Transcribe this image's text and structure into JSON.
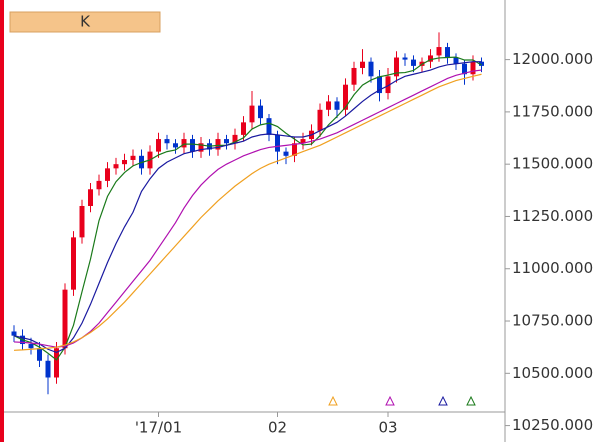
{
  "chart_data": {
    "type": "candlestick",
    "panel_label": "K",
    "categories": [
      null,
      null,
      null,
      null,
      null,
      null,
      null,
      null,
      null,
      null,
      null,
      null,
      null,
      null,
      null,
      null,
      null,
      "'17/01",
      null,
      null,
      null,
      null,
      null,
      null,
      null,
      null,
      null,
      null,
      null,
      null,
      null,
      "02",
      null,
      null,
      null,
      null,
      null,
      null,
      null,
      null,
      null,
      null,
      null,
      null,
      "03",
      null,
      null,
      null,
      null,
      null,
      null,
      null,
      null,
      null,
      null,
      null
    ],
    "open": [
      10700,
      10680,
      10640,
      10620,
      10560,
      10480,
      10620,
      10900,
      11150,
      11300,
      11380,
      11420,
      11480,
      11500,
      11520,
      11540,
      11480,
      11560,
      11620,
      11600,
      11580,
      11620,
      11560,
      11600,
      11570,
      11620,
      11600,
      11640,
      11700,
      11780,
      11720,
      11640,
      11560,
      11540,
      11600,
      11620,
      11660,
      11760,
      11800,
      11760,
      11880,
      11960,
      11990,
      11920,
      11840,
      11920,
      12010,
      12000,
      11970,
      11990,
      12020,
      12060,
      12010,
      11980,
      11930,
      11990
    ],
    "high": [
      10730,
      10710,
      10670,
      10650,
      10590,
      10650,
      10930,
      11180,
      11330,
      11410,
      11450,
      11510,
      11530,
      11550,
      11570,
      11570,
      11590,
      11650,
      11640,
      11620,
      11650,
      11640,
      11630,
      11620,
      11650,
      11640,
      11670,
      11730,
      11850,
      11810,
      11740,
      11660,
      11580,
      11630,
      11650,
      11690,
      11790,
      11830,
      11820,
      11910,
      11990,
      12050,
      12010,
      11950,
      11960,
      12040,
      12030,
      12020,
      12010,
      12050,
      12130,
      12080,
      12030,
      12000,
      12020,
      12010
    ],
    "low": [
      10650,
      10610,
      10590,
      10530,
      10400,
      10450,
      10590,
      10870,
      11120,
      11270,
      11350,
      11390,
      11450,
      11470,
      11490,
      11450,
      11450,
      11530,
      11570,
      11550,
      11550,
      11530,
      11530,
      11540,
      11540,
      11570,
      11570,
      11610,
      11670,
      11690,
      11610,
      11500,
      11500,
      11510,
      11570,
      11590,
      11630,
      11730,
      11720,
      11730,
      11850,
      11930,
      11890,
      11800,
      11810,
      11890,
      11970,
      11940,
      11940,
      11960,
      11990,
      11980,
      11950,
      11880,
      11900,
      11940
    ],
    "close": [
      10680,
      10640,
      10620,
      10560,
      10480,
      10620,
      10900,
      11150,
      11300,
      11380,
      11420,
      11480,
      11500,
      11520,
      11540,
      11480,
      11560,
      11620,
      11600,
      11580,
      11620,
      11560,
      11600,
      11570,
      11620,
      11600,
      11640,
      11700,
      11780,
      11720,
      11640,
      11560,
      11540,
      11600,
      11620,
      11660,
      11760,
      11800,
      11760,
      11880,
      11960,
      11990,
      11920,
      11840,
      11920,
      12010,
      12000,
      11970,
      11990,
      12020,
      12060,
      12010,
      11980,
      11930,
      11990,
      11970
    ],
    "up_color": "#e8001c",
    "down_color": "#0033cc",
    "series": [
      {
        "color": "#1a7a1a",
        "values": [
          10680,
          10660,
          10647,
          10625,
          10596,
          10564,
          10624,
          10730,
          10890,
          11046,
          11230,
          11346,
          11416,
          11460,
          11492,
          11508,
          11520,
          11544,
          11560,
          11568,
          11596,
          11596,
          11592,
          11586,
          11590,
          11590,
          11606,
          11626,
          11668,
          11688,
          11696,
          11680,
          11648,
          11620,
          11592,
          11596,
          11636,
          11688,
          11728,
          11772,
          11832,
          11878,
          11902,
          11918,
          11926,
          11936,
          11938,
          11948,
          11978,
          12000,
          12008,
          12010,
          12012,
          11998,
          11998,
          11974
        ]
      },
      {
        "color": "#1a1aa0",
        "values": [
          10680,
          10670,
          10660,
          10640,
          10615,
          10600,
          10620,
          10670,
          10740,
          10830,
          10930,
          11030,
          11120,
          11200,
          11270,
          11370,
          11430,
          11480,
          11510,
          11530,
          11550,
          11560,
          11570,
          11575,
          11580,
          11590,
          11600,
          11610,
          11630,
          11640,
          11645,
          11640,
          11635,
          11630,
          11630,
          11640,
          11660,
          11680,
          11700,
          11730,
          11765,
          11800,
          11830,
          11855,
          11875,
          11900,
          11920,
          11930,
          11940,
          11950,
          11965,
          11975,
          11980,
          11985,
          11990,
          11990
        ]
      },
      {
        "color": "#b010b0",
        "values": [
          10650,
          10648,
          10645,
          10640,
          10632,
          10625,
          10630,
          10645,
          10670,
          10700,
          10740,
          10790,
          10840,
          10890,
          10940,
          10990,
          11040,
          11100,
          11160,
          11220,
          11290,
          11350,
          11400,
          11440,
          11475,
          11500,
          11520,
          11540,
          11555,
          11570,
          11580,
          11585,
          11590,
          11595,
          11600,
          11610,
          11620,
          11635,
          11650,
          11670,
          11690,
          11710,
          11730,
          11750,
          11770,
          11790,
          11810,
          11830,
          11850,
          11870,
          11890,
          11910,
          11925,
          11935,
          11945,
          11950
        ]
      },
      {
        "color": "#f0a020",
        "values": [
          10610,
          10612,
          10615,
          10618,
          10620,
          10625,
          10635,
          10650,
          10670,
          10695,
          10725,
          10760,
          10800,
          10840,
          10885,
          10930,
          10975,
          11020,
          11065,
          11110,
          11155,
          11200,
          11245,
          11285,
          11325,
          11360,
          11395,
          11425,
          11455,
          11480,
          11500,
          11515,
          11530,
          11545,
          11560,
          11575,
          11590,
          11610,
          11630,
          11650,
          11670,
          11690,
          11710,
          11730,
          11750,
          11770,
          11790,
          11810,
          11830,
          11850,
          11870,
          11885,
          11900,
          11910,
          11920,
          11930
        ]
      }
    ],
    "ylim": [
      10315,
      12285
    ],
    "yticks": [
      {
        "value": 12000,
        "label": "12000.000"
      },
      {
        "value": 11750,
        "label": "11750.000"
      },
      {
        "value": 11500,
        "label": "11500.000"
      },
      {
        "value": 11250,
        "label": "11250.000"
      },
      {
        "value": 11000,
        "label": "11000.000"
      },
      {
        "value": 10750,
        "label": "10750.000"
      },
      {
        "value": 10500,
        "label": "10500.000"
      },
      {
        "value": 10250,
        "label": "10250.000"
      }
    ]
  }
}
